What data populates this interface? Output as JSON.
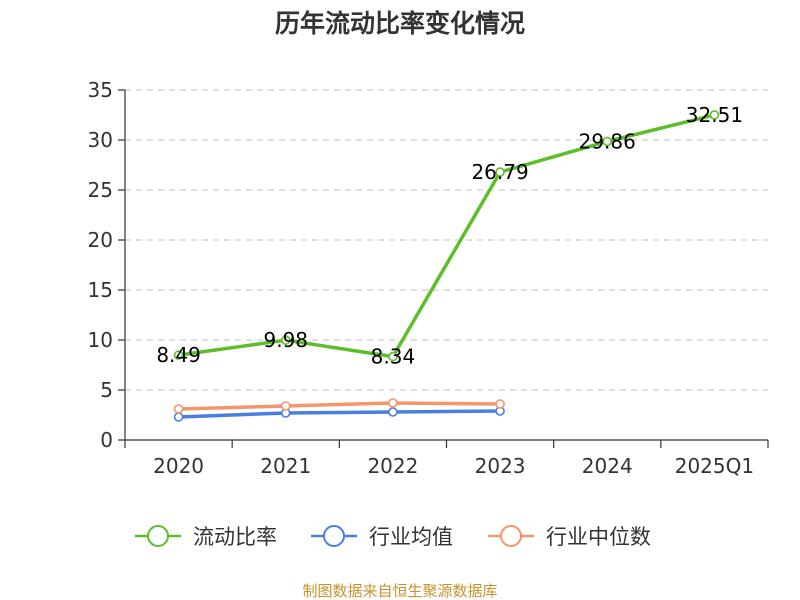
{
  "chart_data": {
    "type": "line",
    "title": "历年流动比率变化情况",
    "categories": [
      "2020",
      "2021",
      "2022",
      "2023",
      "2024",
      "2025Q1"
    ],
    "ylim": [
      0,
      35
    ],
    "yticks": [
      0,
      5,
      10,
      15,
      20,
      25,
      30,
      35
    ],
    "grid": "horizontal dashed",
    "series": [
      {
        "name": "流动比率",
        "color": "#5cbf2a",
        "values": [
          8.49,
          9.98,
          8.34,
          26.79,
          29.86,
          32.51
        ],
        "labels": [
          "8.49",
          "9.98",
          "8.34",
          "26.79",
          "29.86",
          "32.51"
        ]
      },
      {
        "name": "行业均值",
        "color": "#4a7fde",
        "values": [
          2.3,
          2.7,
          2.8,
          2.9,
          null,
          null
        ]
      },
      {
        "name": "行业中位数",
        "color": "#f5956a",
        "values": [
          3.1,
          3.4,
          3.7,
          3.6,
          null,
          null
        ]
      }
    ],
    "legend_position": "bottom",
    "source": "制图数据来自恒生聚源数据库"
  }
}
